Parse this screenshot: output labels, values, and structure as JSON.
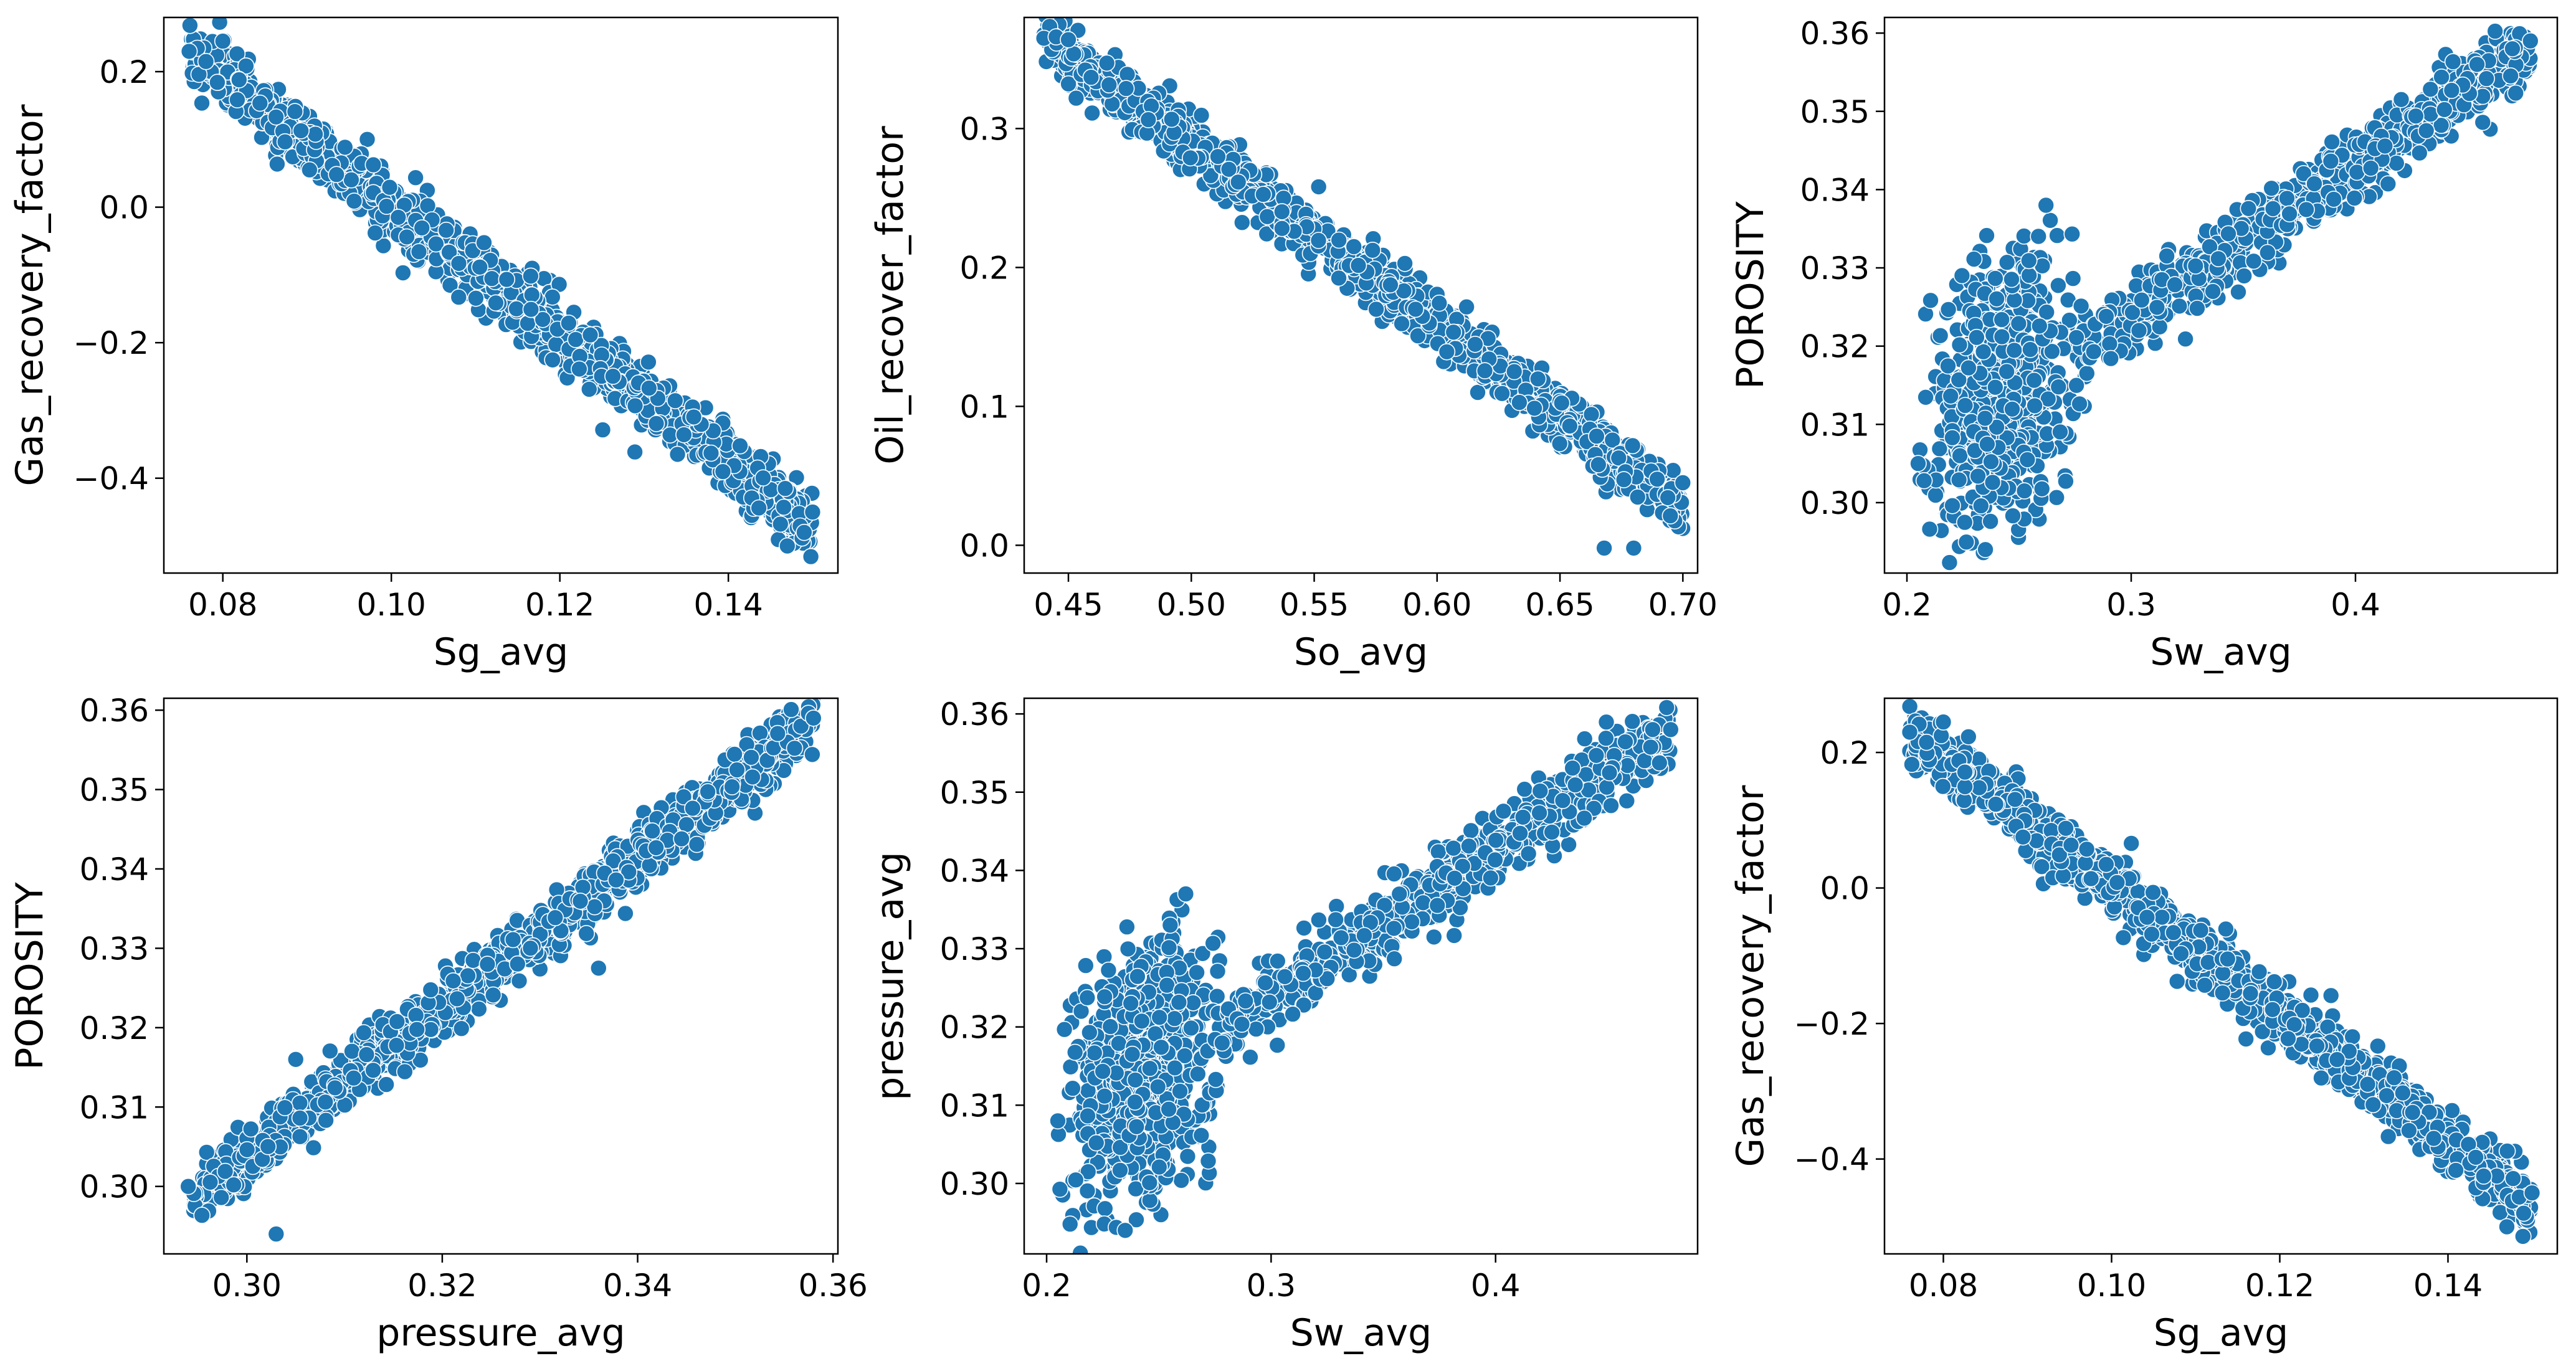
{
  "figure": {
    "marker_color": "#1f77b4",
    "marker_edge_color": "#ffffff",
    "background": "#ffffff"
  },
  "chart_data": [
    {
      "type": "scatter",
      "xlabel": "Sg_avg",
      "ylabel": "Gas_recovery_factor",
      "xlim": [
        0.073,
        0.153
      ],
      "ylim": [
        -0.54,
        0.28
      ],
      "xticks": [
        0.08,
        0.1,
        0.12,
        0.14
      ],
      "xtick_labels": [
        "0.08",
        "0.10",
        "0.12",
        "0.14"
      ],
      "yticks": [
        -0.4,
        -0.2,
        0.0,
        0.2
      ],
      "ytick_labels": [
        "−0.4",
        "−0.2",
        "0.0",
        "0.2"
      ],
      "trend": {
        "x0": 0.076,
        "y0": 0.23,
        "x1": 0.15,
        "y1": -0.47
      },
      "point_count": 1300,
      "band_halfwidth_y": 0.05,
      "extreme_points": [
        [
          0.076,
          0.23
        ],
        [
          0.078,
          0.215
        ],
        [
          0.08,
          0.245
        ],
        [
          0.147,
          -0.5
        ],
        [
          0.15,
          -0.45
        ],
        [
          0.149,
          -0.48
        ]
      ]
    },
    {
      "type": "scatter",
      "xlabel": "So_avg",
      "ylabel": "Oil_recover_factor",
      "xlim": [
        0.432,
        0.706
      ],
      "ylim": [
        -0.02,
        0.38
      ],
      "xticks": [
        0.45,
        0.5,
        0.55,
        0.6,
        0.65,
        0.7
      ],
      "xtick_labels": [
        "0.45",
        "0.50",
        "0.55",
        "0.60",
        "0.65",
        "0.70"
      ],
      "yticks": [
        0.0,
        0.1,
        0.2,
        0.3
      ],
      "ytick_labels": [
        "0.0",
        "0.1",
        "0.2",
        "0.3"
      ],
      "trend": {
        "x0": 0.44,
        "y0": 0.365,
        "x1": 0.7,
        "y1": 0.03
      },
      "point_count": 1300,
      "band_halfwidth_y": 0.022,
      "extreme_points": [
        [
          0.44,
          0.365
        ],
        [
          0.445,
          0.366
        ],
        [
          0.45,
          0.364
        ],
        [
          0.668,
          -0.002
        ],
        [
          0.68,
          -0.002
        ],
        [
          0.7,
          0.045
        ]
      ]
    },
    {
      "type": "scatter",
      "xlabel": "Sw_avg",
      "ylabel": "POROSITY",
      "xlim": [
        0.19,
        0.49
      ],
      "ylim": [
        0.291,
        0.362
      ],
      "xticks": [
        0.2,
        0.3,
        0.4
      ],
      "xtick_labels": [
        "0.2",
        "0.3",
        "0.4"
      ],
      "yticks": [
        0.3,
        0.31,
        0.32,
        0.33,
        0.34,
        0.35,
        0.36
      ],
      "ytick_labels": [
        "0.30",
        "0.31",
        "0.32",
        "0.33",
        "0.34",
        "0.35",
        "0.36"
      ],
      "clusters": [
        {
          "x": [
            0.205,
            0.28
          ],
          "y": [
            0.294,
            0.335
          ],
          "count": 650
        },
        {
          "trend": {
            "x0": 0.275,
            "y0": 0.319,
            "x1": 0.478,
            "y1": 0.358
          },
          "half_width": 0.004,
          "count": 700
        }
      ],
      "extreme_points": [
        [
          0.205,
          0.305
        ],
        [
          0.262,
          0.338
        ],
        [
          0.478,
          0.359
        ],
        [
          0.47,
          0.358
        ],
        [
          0.235,
          0.294
        ]
      ]
    },
    {
      "type": "scatter",
      "xlabel": "pressure_avg",
      "ylabel": "POROSITY",
      "xlim": [
        0.2915,
        0.3605
      ],
      "ylim": [
        0.2915,
        0.3615
      ],
      "xticks": [
        0.3,
        0.32,
        0.34,
        0.36
      ],
      "xtick_labels": [
        "0.30",
        "0.32",
        "0.34",
        "0.36"
      ],
      "yticks": [
        0.3,
        0.31,
        0.32,
        0.33,
        0.34,
        0.35,
        0.36
      ],
      "ytick_labels": [
        "0.30",
        "0.31",
        "0.32",
        "0.33",
        "0.34",
        "0.35",
        "0.36"
      ],
      "trend": {
        "x0": 0.2945,
        "y0": 0.2985,
        "x1": 0.358,
        "y1": 0.3585
      },
      "point_count": 1300,
      "band_halfwidth_y": 0.004,
      "extreme_points": [
        [
          0.294,
          0.3
        ],
        [
          0.303,
          0.294
        ],
        [
          0.358,
          0.359
        ],
        [
          0.336,
          0.3275
        ],
        [
          0.305,
          0.316
        ]
      ]
    },
    {
      "type": "scatter",
      "xlabel": "Sw_avg",
      "ylabel": "pressure_avg",
      "xlim": [
        0.19,
        0.49
      ],
      "ylim": [
        0.291,
        0.362
      ],
      "xticks": [
        0.2,
        0.3,
        0.4
      ],
      "xtick_labels": [
        "0.2",
        "0.3",
        "0.4"
      ],
      "yticks": [
        0.3,
        0.31,
        0.32,
        0.33,
        0.34,
        0.35,
        0.36
      ],
      "ytick_labels": [
        "0.30",
        "0.31",
        "0.32",
        "0.33",
        "0.34",
        "0.35",
        "0.36"
      ],
      "clusters": [
        {
          "x": [
            0.205,
            0.28
          ],
          "y": [
            0.294,
            0.335
          ],
          "count": 650
        },
        {
          "trend": {
            "x0": 0.275,
            "y0": 0.319,
            "x1": 0.478,
            "y1": 0.358
          },
          "half_width": 0.004,
          "count": 700
        }
      ],
      "extreme_points": [
        [
          0.205,
          0.308
        ],
        [
          0.262,
          0.337
        ],
        [
          0.478,
          0.358
        ],
        [
          0.47,
          0.358
        ],
        [
          0.235,
          0.294
        ]
      ]
    },
    {
      "type": "scatter",
      "xlabel": "Sg_avg",
      "ylabel": "Gas_recovery_factor",
      "xlim": [
        0.073,
        0.153
      ],
      "ylim": [
        -0.54,
        0.28
      ],
      "xticks": [
        0.08,
        0.1,
        0.12,
        0.14
      ],
      "xtick_labels": [
        "0.08",
        "0.10",
        "0.12",
        "0.14"
      ],
      "yticks": [
        -0.4,
        -0.2,
        0.0,
        0.2
      ],
      "ytick_labels": [
        "−0.4",
        "−0.2",
        "0.0",
        "0.2"
      ],
      "trend": {
        "x0": 0.076,
        "y0": 0.23,
        "x1": 0.15,
        "y1": -0.47
      },
      "point_count": 1300,
      "band_halfwidth_y": 0.05,
      "extreme_points": [
        [
          0.076,
          0.23
        ],
        [
          0.078,
          0.215
        ],
        [
          0.08,
          0.245
        ],
        [
          0.147,
          -0.5
        ],
        [
          0.15,
          -0.45
        ],
        [
          0.149,
          -0.48
        ]
      ]
    }
  ]
}
